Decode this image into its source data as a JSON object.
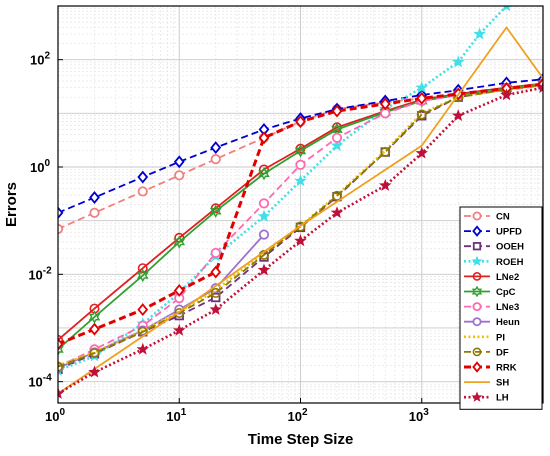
{
  "chart_data": {
    "type": "line",
    "title": "",
    "xlabel": "Time Step Size",
    "ylabel": "Errors",
    "xscale": "log",
    "yscale": "log",
    "xlim": [
      1,
      10000
    ],
    "ylim": [
      4e-05,
      1000
    ],
    "xticks": [
      {
        "value": 1,
        "base": "10",
        "exp": "0"
      },
      {
        "value": 10,
        "base": "10",
        "exp": "1"
      },
      {
        "value": 100,
        "base": "10",
        "exp": "2"
      },
      {
        "value": 1000,
        "base": "10",
        "exp": "3"
      }
    ],
    "yticks": [
      {
        "value": 0.0001,
        "base": "10",
        "exp": "-4"
      },
      {
        "value": 0.01,
        "base": "10",
        "exp": "-2"
      },
      {
        "value": 1,
        "base": "10",
        "exp": "0"
      },
      {
        "value": 100,
        "base": "10",
        "exp": "2"
      }
    ],
    "grid": true,
    "legend_position": "lower-right",
    "series": [
      {
        "name": "CN",
        "color": "#f08080",
        "dash": "dashed",
        "marker": "circle",
        "x": [
          1,
          2,
          5,
          10,
          20,
          50,
          100,
          200,
          500,
          1000,
          2000,
          5000,
          10000
        ],
        "y": [
          0.07,
          0.14,
          0.35,
          0.7,
          1.4,
          3.5,
          7,
          12,
          16,
          19,
          22,
          27,
          33
        ]
      },
      {
        "name": "UPFD",
        "color": "#0000d0",
        "dash": "dashed",
        "marker": "diamond",
        "x": [
          1,
          2,
          5,
          10,
          20,
          50,
          100,
          200,
          500,
          1000,
          2000,
          5000,
          10000
        ],
        "y": [
          0.14,
          0.27,
          0.65,
          1.25,
          2.3,
          5,
          8,
          12,
          17,
          22,
          27,
          37,
          43
        ]
      },
      {
        "name": "OOEH",
        "color": "#70307a",
        "dash": "dashed",
        "marker": "square",
        "x": [
          1,
          2,
          5,
          10,
          20,
          50,
          100,
          200,
          500,
          1000,
          2000,
          5000,
          10000
        ],
        "y": [
          0.00017,
          0.00033,
          0.00085,
          0.0017,
          0.0037,
          0.021,
          0.075,
          0.28,
          1.9,
          9,
          20,
          28,
          34
        ]
      },
      {
        "name": "ROEH",
        "color": "#40e0e8",
        "dash": "dotted",
        "marker": "star",
        "x": [
          1,
          2,
          5,
          10,
          20,
          50,
          100,
          200,
          500,
          1000,
          2000,
          3000,
          5000,
          10000
        ],
        "y": [
          0.00016,
          0.0003,
          0.0012,
          0.0045,
          0.022,
          0.12,
          0.55,
          2.5,
          12,
          30,
          90,
          300,
          1000,
          1200
        ]
      },
      {
        "name": "LNe2",
        "color": "#e02020",
        "dash": "solid",
        "marker": "circle-open",
        "x": [
          1,
          2,
          5,
          10,
          20,
          50,
          100,
          200,
          500,
          1000,
          2000,
          5000,
          10000
        ],
        "y": [
          0.0006,
          0.0023,
          0.013,
          0.048,
          0.17,
          0.9,
          2.2,
          5.5,
          11,
          18,
          23,
          30,
          36
        ]
      },
      {
        "name": "CpC",
        "color": "#30a030",
        "dash": "solid",
        "marker": "hexagram",
        "x": [
          1,
          2,
          5,
          10,
          20,
          50,
          100,
          200,
          500,
          1000,
          2000,
          5000,
          10000
        ],
        "y": [
          0.0004,
          0.0016,
          0.0095,
          0.04,
          0.15,
          0.75,
          2,
          5,
          10.5,
          17,
          22,
          29,
          35
        ]
      },
      {
        "name": "LNe3",
        "color": "#ff69b4",
        "dash": "dashed",
        "marker": "circle",
        "x": [
          1,
          2,
          5,
          10,
          20,
          50,
          100,
          200,
          500,
          1000,
          2000,
          5000,
          10000
        ],
        "y": [
          0.00019,
          0.0004,
          0.0011,
          0.0036,
          0.025,
          0.21,
          1.1,
          3.5,
          10,
          17,
          22,
          29,
          35
        ]
      },
      {
        "name": "Heun",
        "color": "#a070d0",
        "dash": "solid",
        "marker": "circle",
        "x": [
          1,
          2,
          5,
          10,
          20,
          50
        ],
        "y": [
          0.00018,
          0.00035,
          0.0009,
          0.0022,
          0.0055,
          0.055
        ]
      },
      {
        "name": "PI",
        "color": "#f0c000",
        "dash": "dotted",
        "marker": "none",
        "x": [
          1,
          2,
          5,
          10,
          20,
          50,
          100,
          200,
          500,
          1000,
          2000,
          5000,
          10000
        ],
        "y": [
          0.0002,
          0.00035,
          0.0009,
          0.002,
          0.005,
          0.025,
          0.08,
          0.3,
          2,
          10,
          20,
          28,
          34
        ]
      },
      {
        "name": "DF",
        "color": "#8b7a00",
        "dash": "dashed",
        "marker": "circle-open",
        "x": [
          1,
          2,
          5,
          10,
          20,
          50,
          100,
          200,
          500,
          1000,
          2000,
          5000,
          10000
        ],
        "y": [
          0.00019,
          0.00034,
          0.00085,
          0.0019,
          0.0045,
          0.023,
          0.078,
          0.29,
          1.9,
          9.5,
          20,
          28,
          34
        ]
      },
      {
        "name": "RRK",
        "color": "#e00000",
        "dash": "dashed",
        "marker": "diamond",
        "x": [
          1,
          2,
          5,
          10,
          20,
          50,
          100,
          200,
          500,
          1000,
          2000,
          5000,
          10000
        ],
        "y": [
          0.0005,
          0.00095,
          0.0022,
          0.005,
          0.011,
          3.5,
          7,
          11,
          15,
          19,
          23,
          29,
          35
        ]
      },
      {
        "name": "SH",
        "color": "#f0a020",
        "dash": "solid",
        "marker": "none",
        "x": [
          1,
          10,
          100,
          1000,
          5000,
          10000
        ],
        "y": [
          6e-05,
          0.002,
          0.08,
          2.5,
          400,
          45
        ]
      },
      {
        "name": "LH",
        "color": "#c0103a",
        "dash": "dotted",
        "marker": "star",
        "x": [
          1,
          2,
          5,
          10,
          20,
          50,
          100,
          200,
          500,
          1000,
          2000,
          5000,
          10000
        ],
        "y": [
          6e-05,
          0.00015,
          0.0004,
          0.0009,
          0.0022,
          0.012,
          0.042,
          0.14,
          0.45,
          1.8,
          9,
          22,
          30
        ]
      }
    ]
  }
}
